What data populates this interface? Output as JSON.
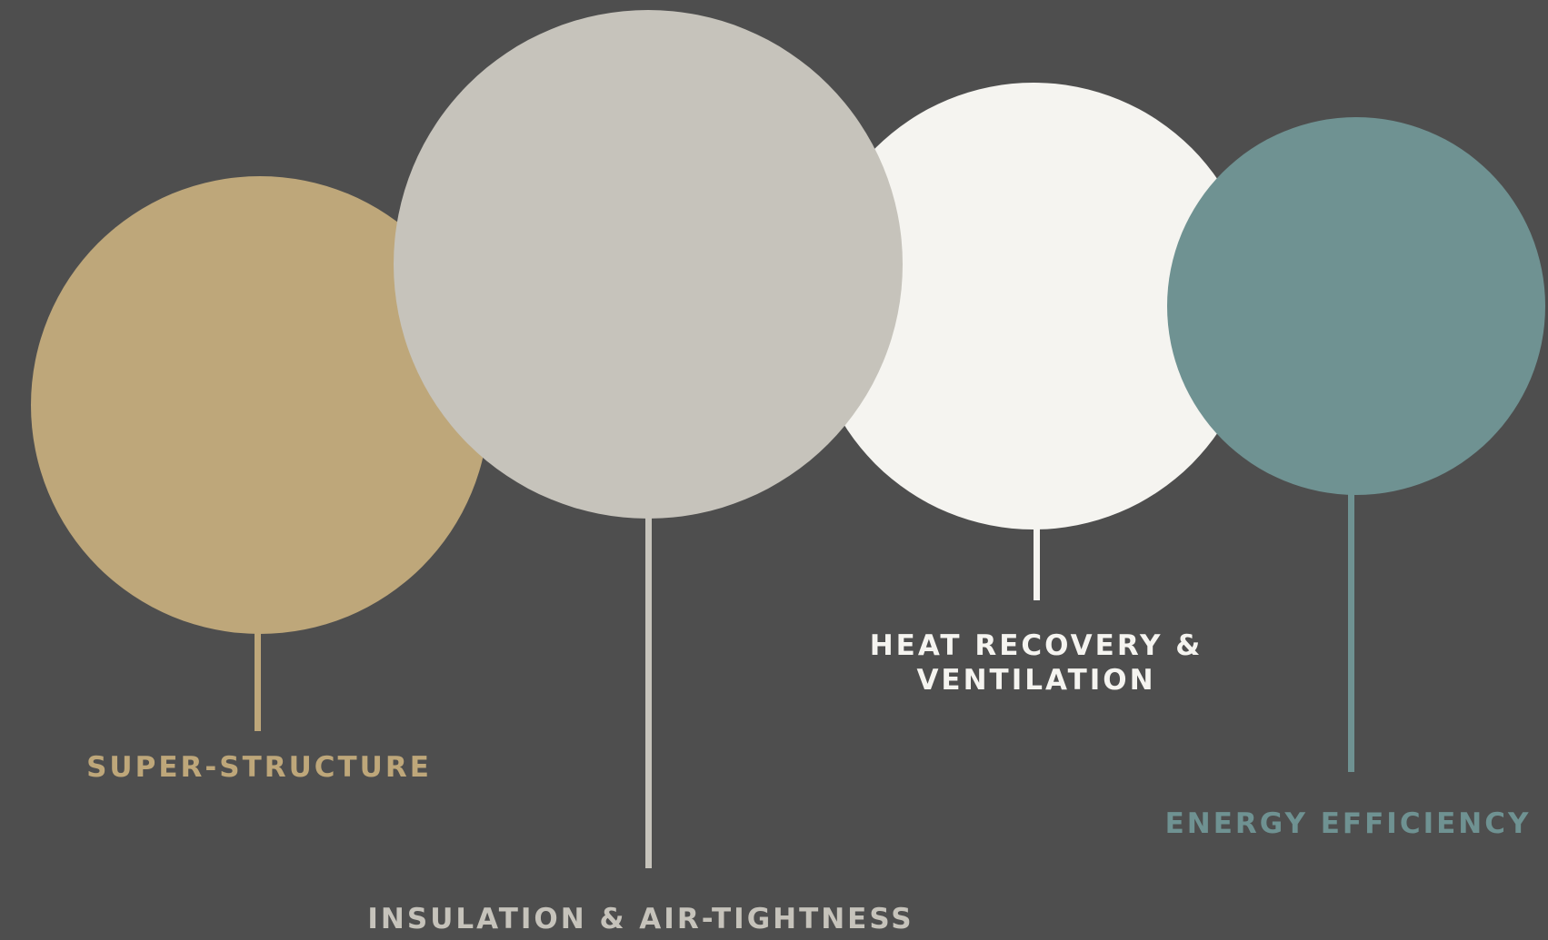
{
  "nodes": [
    {
      "id": "superstructure",
      "label_lines": [
        "SUPER-STRUCTURE"
      ],
      "color": "#bea77a"
    },
    {
      "id": "insulation",
      "label_lines": [
        "INSULATION & AIR-TIGHTNESS"
      ],
      "color": "#c6c3bb"
    },
    {
      "id": "heat",
      "label_lines": [
        "HEAT RECOVERY &",
        "VENTILATION"
      ],
      "color": "#f5f4f0"
    },
    {
      "id": "energy",
      "label_lines": [
        "ENERGY EFFICIENCY"
      ],
      "color": "#6f9292"
    }
  ],
  "background": "#4e4e4e"
}
